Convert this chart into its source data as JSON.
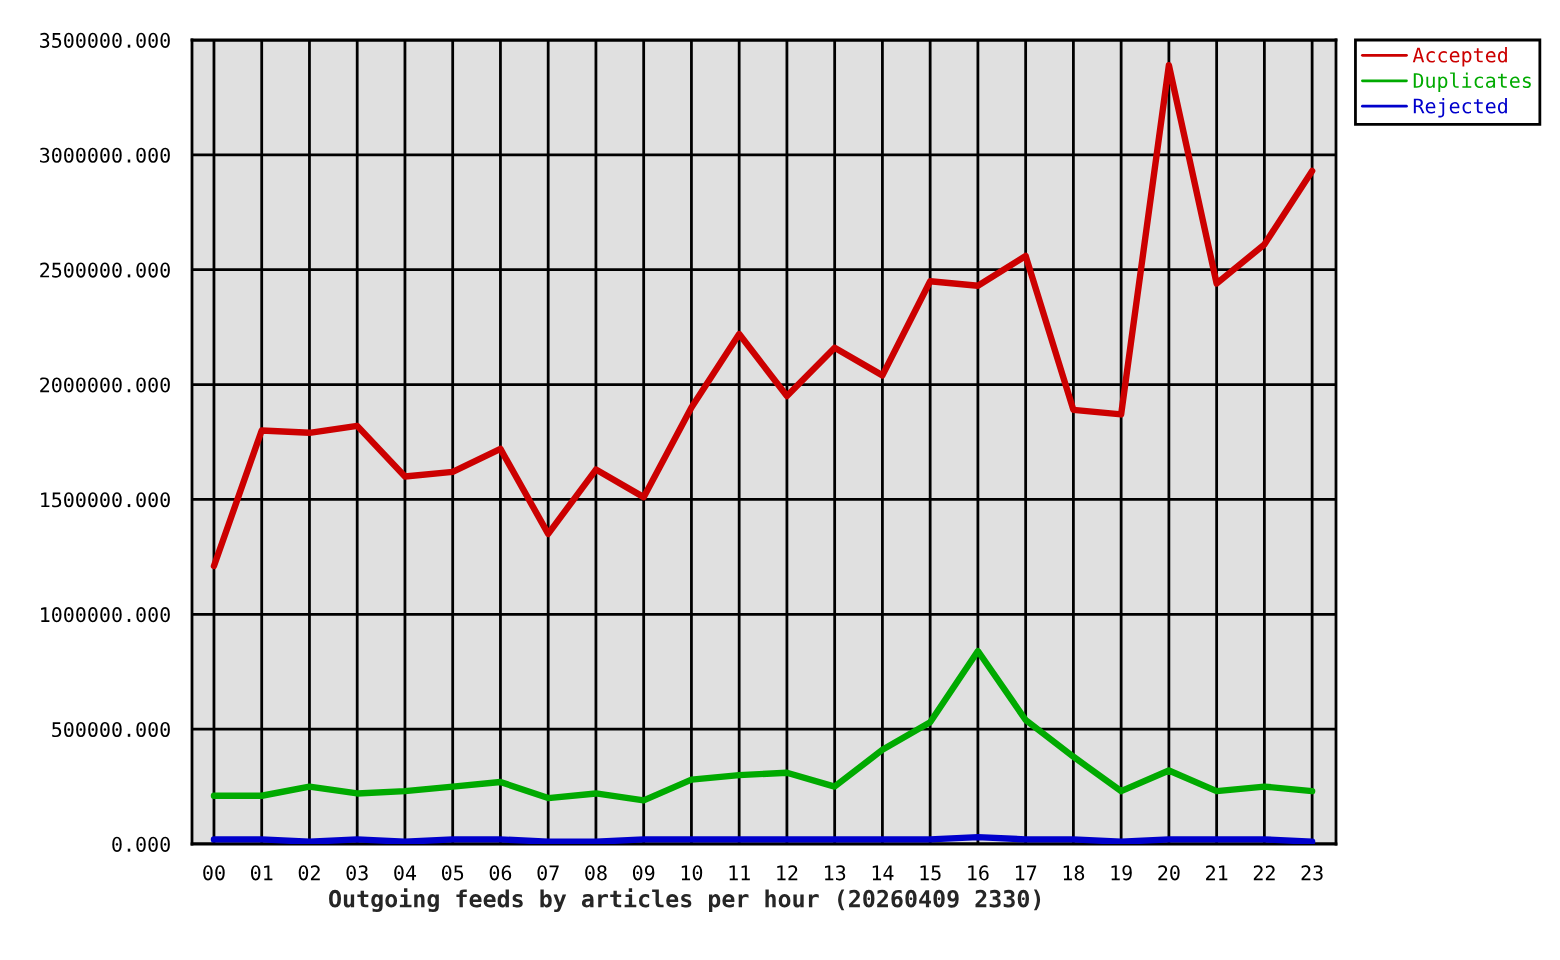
{
  "chart_data": {
    "type": "line",
    "xlabel": "Outgoing feeds by articles per hour (20260409 2330)",
    "categories": [
      "00",
      "01",
      "02",
      "03",
      "04",
      "05",
      "06",
      "07",
      "08",
      "09",
      "10",
      "11",
      "12",
      "13",
      "14",
      "15",
      "16",
      "17",
      "18",
      "19",
      "20",
      "21",
      "22",
      "23"
    ],
    "series": [
      {
        "name": "Accepted",
        "color": "#cc0000",
        "values": [
          1210000,
          1800000,
          1790000,
          1820000,
          1600000,
          1620000,
          1720000,
          1350000,
          1630000,
          1510000,
          1900000,
          2220000,
          1950000,
          2160000,
          2040000,
          2450000,
          2430000,
          2560000,
          1890000,
          1870000,
          3390000,
          2440000,
          2610000,
          2930000
        ]
      },
      {
        "name": "Duplicates",
        "color": "#00aa00",
        "values": [
          210000,
          210000,
          250000,
          220000,
          230000,
          250000,
          270000,
          200000,
          220000,
          190000,
          280000,
          300000,
          310000,
          250000,
          410000,
          530000,
          840000,
          540000,
          380000,
          230000,
          320000,
          230000,
          250000,
          230000
        ]
      },
      {
        "name": "Rejected",
        "color": "#0000cc",
        "values": [
          20000,
          20000,
          10000,
          20000,
          10000,
          20000,
          20000,
          10000,
          10000,
          20000,
          20000,
          20000,
          20000,
          20000,
          20000,
          20000,
          30000,
          20000,
          20000,
          10000,
          20000,
          20000,
          20000,
          10000
        ]
      }
    ],
    "ylim": [
      0,
      3500000
    ],
    "yticks": [
      {
        "value": 0,
        "label": "0.000"
      },
      {
        "value": 500000,
        "label": "500000.000"
      },
      {
        "value": 1000000,
        "label": "1000000.000"
      },
      {
        "value": 1500000,
        "label": "1500000.000"
      },
      {
        "value": 2000000,
        "label": "2000000.000"
      },
      {
        "value": 2500000,
        "label": "2500000.000"
      },
      {
        "value": 3000000,
        "label": "3000000.000"
      },
      {
        "value": 3500000,
        "label": "3500000.000"
      }
    ],
    "grid": true,
    "legend": "top right",
    "line_style": "solid"
  }
}
